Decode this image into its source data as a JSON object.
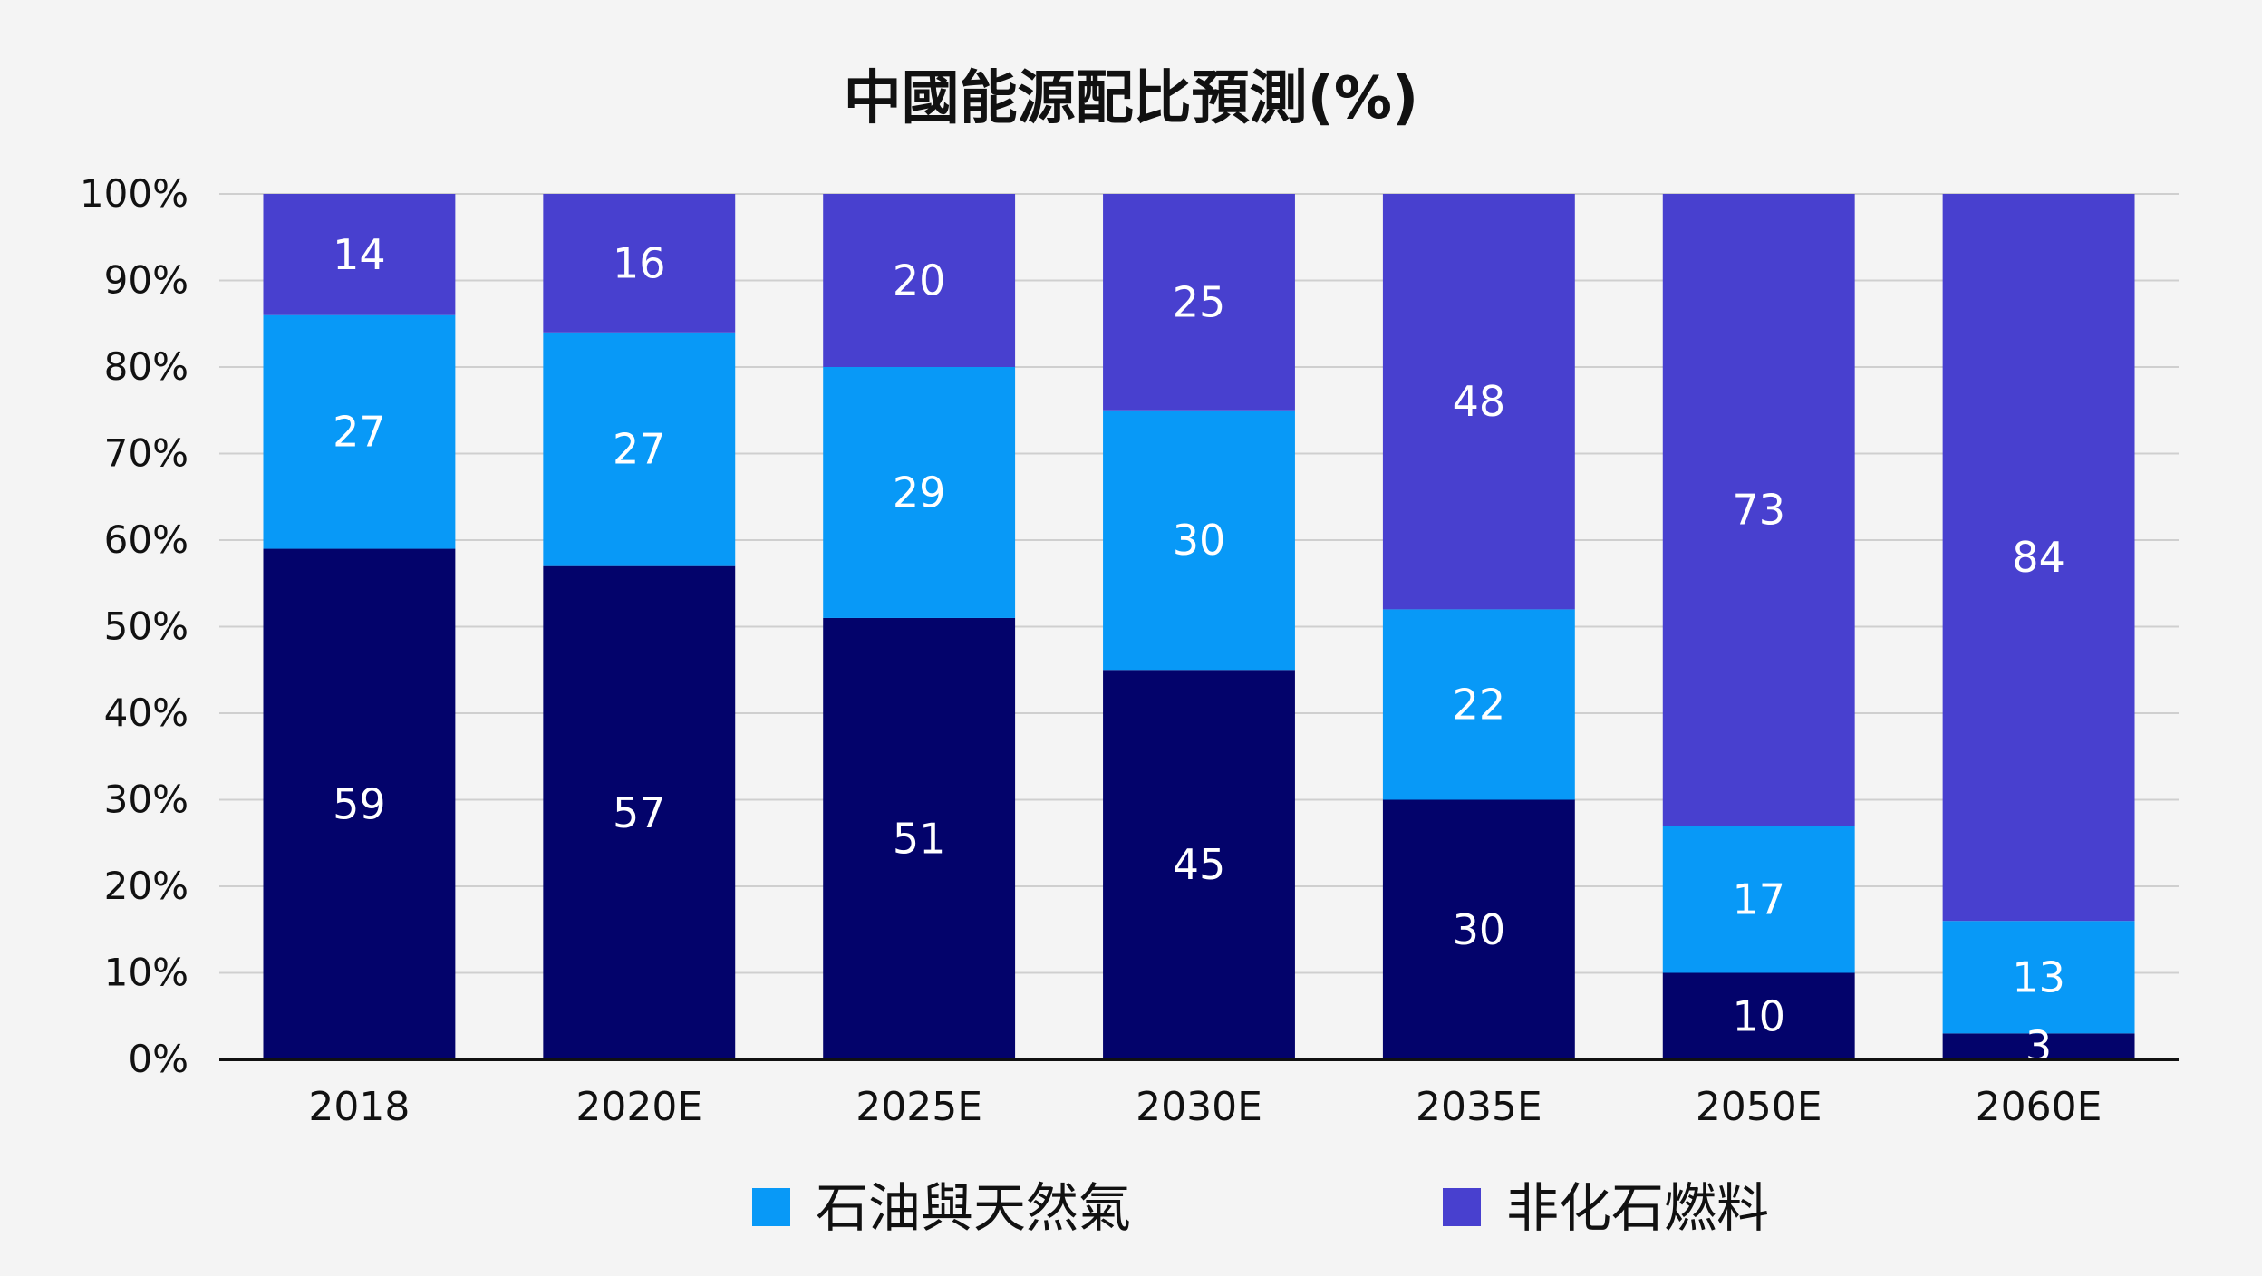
{
  "chart_data": {
    "type": "bar",
    "stacked": true,
    "title": "中國能源配比預測(%)",
    "xlabel": "",
    "ylabel": "",
    "ylim": [
      0,
      100
    ],
    "y_ticks": [
      "0%",
      "10%",
      "20%",
      "30%",
      "40%",
      "50%",
      "60%",
      "70%",
      "80%",
      "90%",
      "100%"
    ],
    "grid": true,
    "legend_position": "bottom",
    "categories": [
      "2018",
      "2020E",
      "2025E",
      "2030E",
      "2035E",
      "2050E",
      "2060E"
    ],
    "series": [
      {
        "name": "",
        "color": "#03036b",
        "values": [
          59,
          57,
          51,
          45,
          30,
          10,
          3
        ]
      },
      {
        "name": "石油與天然氣",
        "color": "#0899f7",
        "values": [
          27,
          27,
          29,
          30,
          22,
          17,
          13
        ]
      },
      {
        "name": "非化石燃料",
        "color": "#4840cf",
        "values": [
          14,
          16,
          20,
          25,
          48,
          73,
          84
        ]
      }
    ]
  }
}
